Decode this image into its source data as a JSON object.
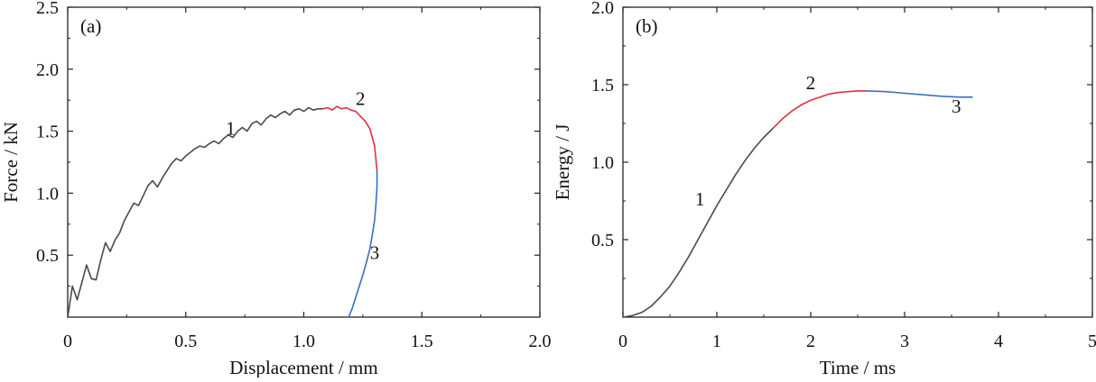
{
  "chart_data": [
    {
      "type": "line",
      "panel_label": "(a)",
      "xlabel": "Displacement / mm",
      "ylabel": "Force / kN",
      "xlim": [
        0,
        2.0
      ],
      "ylim": [
        0,
        2.5
      ],
      "xticks": [
        0,
        0.5,
        1.0,
        1.5,
        2.0
      ],
      "xtick_labels": [
        "0",
        "0.5",
        "1.0",
        "1.5",
        "2.0"
      ],
      "yticks": [
        0.5,
        1.0,
        1.5,
        2.0,
        2.5
      ],
      "ytick_labels": [
        "0.5",
        "1.0",
        "1.5",
        "2.0",
        "2.5"
      ],
      "grid": false,
      "series": [
        {
          "color": "#4a4a4a",
          "x": [
            0.0,
            0.02,
            0.04,
            0.06,
            0.08,
            0.1,
            0.12,
            0.14,
            0.16,
            0.18,
            0.2,
            0.22,
            0.24,
            0.26,
            0.28,
            0.3,
            0.32,
            0.34,
            0.36,
            0.38,
            0.4,
            0.42,
            0.44,
            0.46,
            0.48,
            0.5,
            0.52,
            0.54,
            0.56,
            0.58,
            0.6,
            0.62,
            0.64,
            0.66,
            0.68,
            0.7,
            0.72,
            0.74,
            0.76,
            0.78,
            0.8,
            0.82,
            0.84,
            0.86,
            0.88,
            0.9,
            0.92,
            0.94,
            0.96,
            0.98,
            1.0,
            1.02,
            1.04,
            1.06,
            1.08
          ],
          "y": [
            0.0,
            0.25,
            0.14,
            0.28,
            0.42,
            0.31,
            0.3,
            0.46,
            0.6,
            0.53,
            0.62,
            0.68,
            0.78,
            0.85,
            0.92,
            0.9,
            0.98,
            1.06,
            1.1,
            1.05,
            1.12,
            1.18,
            1.24,
            1.28,
            1.26,
            1.3,
            1.33,
            1.36,
            1.38,
            1.37,
            1.4,
            1.42,
            1.4,
            1.44,
            1.47,
            1.45,
            1.5,
            1.53,
            1.5,
            1.56,
            1.58,
            1.55,
            1.6,
            1.63,
            1.61,
            1.64,
            1.66,
            1.63,
            1.67,
            1.68,
            1.66,
            1.69,
            1.67,
            1.68,
            1.68
          ]
        },
        {
          "color": "#e0303c",
          "x": [
            1.08,
            1.1,
            1.12,
            1.14,
            1.16,
            1.18,
            1.2,
            1.22,
            1.24,
            1.26,
            1.28,
            1.29,
            1.3,
            1.305,
            1.31
          ],
          "y": [
            1.68,
            1.69,
            1.67,
            1.7,
            1.68,
            1.69,
            1.67,
            1.66,
            1.62,
            1.58,
            1.52,
            1.45,
            1.38,
            1.28,
            1.18
          ]
        },
        {
          "color": "#3b6ec5",
          "x": [
            1.31,
            1.31,
            1.305,
            1.3,
            1.29,
            1.28,
            1.265,
            1.25,
            1.235,
            1.22,
            1.205,
            1.19
          ],
          "y": [
            1.18,
            1.05,
            0.9,
            0.78,
            0.66,
            0.55,
            0.44,
            0.34,
            0.25,
            0.16,
            0.07,
            0.0
          ]
        }
      ],
      "annotations": [
        {
          "text": "1",
          "x": 0.69,
          "y": 1.47
        },
        {
          "text": "2",
          "x": 1.24,
          "y": 1.71
        },
        {
          "text": "3",
          "x": 1.3,
          "y": 0.47
        }
      ]
    },
    {
      "type": "line",
      "panel_label": "(b)",
      "xlabel": "Time / ms",
      "ylabel": "Energy / J",
      "xlim": [
        0,
        5
      ],
      "ylim": [
        0,
        2.0
      ],
      "xticks": [
        0,
        1,
        2,
        3,
        4,
        5
      ],
      "xtick_labels": [
        "0",
        "1",
        "2",
        "3",
        "4",
        "5"
      ],
      "yticks": [
        0.5,
        1.0,
        1.5,
        2.0
      ],
      "ytick_labels": [
        "0.5",
        "1.0",
        "1.5",
        "2.0"
      ],
      "grid": false,
      "series": [
        {
          "color": "#4a4a4a",
          "x": [
            0.0,
            0.1,
            0.2,
            0.3,
            0.4,
            0.5,
            0.6,
            0.7,
            0.8,
            0.9,
            1.0,
            1.1,
            1.2,
            1.3,
            1.4,
            1.5,
            1.6
          ],
          "y": [
            0.0,
            0.01,
            0.03,
            0.07,
            0.13,
            0.2,
            0.29,
            0.39,
            0.5,
            0.61,
            0.72,
            0.82,
            0.92,
            1.01,
            1.09,
            1.16,
            1.22
          ]
        },
        {
          "color": "#e0303c",
          "x": [
            1.6,
            1.7,
            1.8,
            1.9,
            2.0,
            2.1,
            2.2,
            2.3,
            2.4,
            2.5,
            2.6
          ],
          "y": [
            1.22,
            1.28,
            1.33,
            1.37,
            1.4,
            1.42,
            1.44,
            1.45,
            1.455,
            1.46,
            1.46
          ]
        },
        {
          "color": "#3b6ec5",
          "x": [
            2.6,
            2.8,
            3.0,
            3.2,
            3.4,
            3.6,
            3.72
          ],
          "y": [
            1.46,
            1.455,
            1.445,
            1.435,
            1.425,
            1.42,
            1.42
          ]
        }
      ],
      "annotations": [
        {
          "text": "1",
          "x": 0.82,
          "y": 0.72
        },
        {
          "text": "2",
          "x": 2.0,
          "y": 1.47
        },
        {
          "text": "3",
          "x": 3.55,
          "y": 1.32
        }
      ]
    }
  ]
}
